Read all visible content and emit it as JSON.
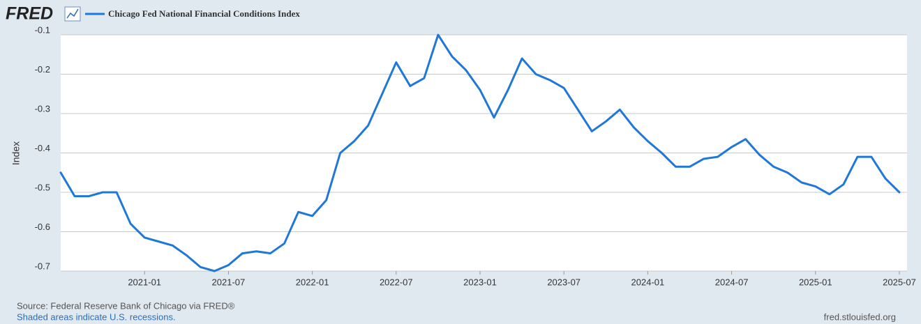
{
  "chart_data": {
    "type": "line",
    "brand": "FRED",
    "title": "Chicago Fed National Financial Conditions Index",
    "ylabel": "Index",
    "source": "Source: Federal Reserve Bank of Chicago via FRED®",
    "note": "Shaded areas indicate U.S. recessions.",
    "url": "fred.stlouisfed.org",
    "x": [
      "2020-07",
      "2020-08",
      "2020-09",
      "2020-10",
      "2020-11",
      "2020-12",
      "2021-01",
      "2021-02",
      "2021-03",
      "2021-04",
      "2021-05",
      "2021-06",
      "2021-07",
      "2021-08",
      "2021-09",
      "2021-10",
      "2021-11",
      "2021-12",
      "2022-01",
      "2022-02",
      "2022-03",
      "2022-04",
      "2022-05",
      "2022-06",
      "2022-07",
      "2022-08",
      "2022-09",
      "2022-10",
      "2022-11",
      "2022-12",
      "2023-01",
      "2023-02",
      "2023-03",
      "2023-04",
      "2023-05",
      "2023-06",
      "2023-07",
      "2023-08",
      "2023-09",
      "2023-10",
      "2023-11",
      "2023-12",
      "2024-01",
      "2024-02",
      "2024-03",
      "2024-04",
      "2024-05",
      "2024-06",
      "2024-07",
      "2024-08",
      "2024-09",
      "2024-10",
      "2024-11",
      "2024-12",
      "2025-01",
      "2025-02",
      "2025-03",
      "2025-04",
      "2025-05",
      "2025-06",
      "2025-07"
    ],
    "series": [
      {
        "name": "Chicago Fed National Financial Conditions Index",
        "color": "#1f78d8",
        "values": [
          -0.45,
          -0.51,
          -0.51,
          -0.5,
          -0.5,
          -0.58,
          -0.615,
          -0.625,
          -0.635,
          -0.66,
          -0.69,
          -0.7,
          -0.685,
          -0.655,
          -0.65,
          -0.655,
          -0.63,
          -0.55,
          -0.56,
          -0.52,
          -0.4,
          -0.37,
          -0.33,
          -0.25,
          -0.17,
          -0.23,
          -0.21,
          -0.1,
          -0.155,
          -0.19,
          -0.24,
          -0.31,
          -0.24,
          -0.16,
          -0.2,
          -0.215,
          -0.235,
          -0.29,
          -0.345,
          -0.32,
          -0.29,
          -0.335,
          -0.37,
          -0.4,
          -0.435,
          -0.435,
          -0.415,
          -0.41,
          -0.385,
          -0.365,
          -0.405,
          -0.435,
          -0.45,
          -0.475,
          -0.485,
          -0.505,
          -0.48,
          -0.41,
          -0.41,
          -0.465,
          -0.5
        ]
      }
    ],
    "xlim": [
      "2020-07",
      "2025-07"
    ],
    "xticks": [
      "2021-01",
      "2021-07",
      "2022-01",
      "2022-07",
      "2023-01",
      "2023-07",
      "2024-01",
      "2024-07",
      "2025-01",
      "2025-07"
    ],
    "ylim": [
      -0.7,
      -0.1
    ],
    "yticks": [
      -0.7,
      -0.6,
      -0.5,
      -0.4,
      -0.3,
      -0.2,
      -0.1
    ],
    "grid": true
  }
}
